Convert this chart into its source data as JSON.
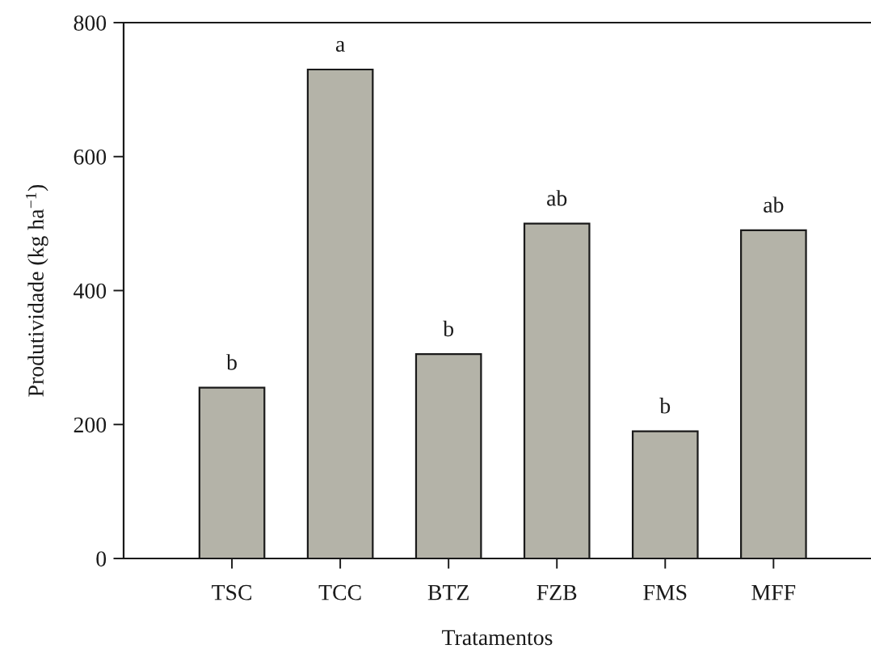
{
  "chart_data": {
    "type": "bar",
    "xlabel": "Tratamentos",
    "ylabel": "Produtividade (kg ha$^{−1}$)",
    "categories": [
      "TSC",
      "TCC",
      "BTZ",
      "FZB",
      "FMS",
      "MFF"
    ],
    "values": [
      255,
      730,
      305,
      500,
      190,
      490
    ],
    "color": "#b4b3a8",
    "ylim": [
      0,
      800
    ],
    "yticks": [
      0,
      200,
      400,
      600,
      800
    ],
    "annotations": [
      {
        "text": "b",
        "x": "TSC",
        "y": 255
      },
      {
        "text": "a",
        "x": "TCC",
        "y": 730
      },
      {
        "text": "b",
        "x": "BTZ",
        "y": 305
      },
      {
        "text": "ab",
        "x": "FZB",
        "y": 500
      },
      {
        "text": "b",
        "x": "FMS",
        "y": 190
      },
      {
        "text": "ab",
        "x": "MFF",
        "y": 490
      }
    ]
  }
}
